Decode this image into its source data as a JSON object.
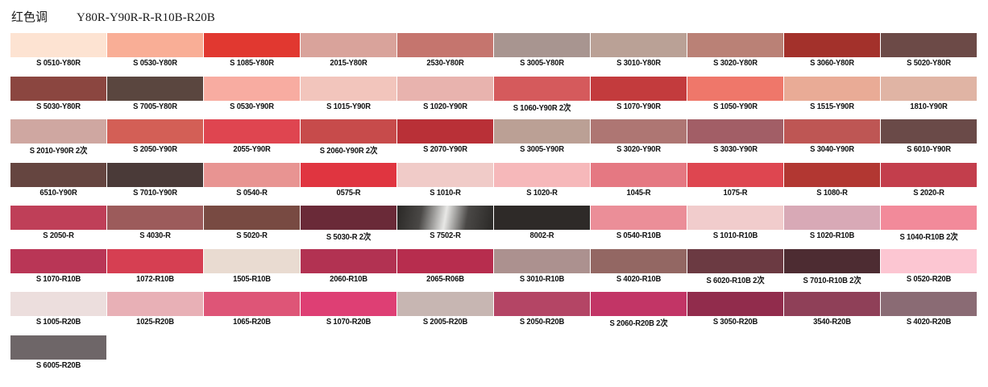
{
  "header": {
    "title": "红色调",
    "series": "Y80R-Y90R-R-R10B-R20B"
  },
  "swatches": [
    {
      "code": "S 0510-Y80R",
      "color": "#fde3d2"
    },
    {
      "code": "S 0530-Y80R",
      "color": "#f9ae96"
    },
    {
      "code": "S 1085-Y80R",
      "color": "#e13830"
    },
    {
      "code": "2015-Y80R",
      "color": "#d9a39b"
    },
    {
      "code": "2530-Y80R",
      "color": "#c5756e"
    },
    {
      "code": "S 3005-Y80R",
      "color": "#a89590"
    },
    {
      "code": "S 3010-Y80R",
      "color": "#baa196"
    },
    {
      "code": "S 3020-Y80R",
      "color": "#ba8176"
    },
    {
      "code": "S 3060-Y80R",
      "color": "#a3312b"
    },
    {
      "code": "S 5020-Y80R",
      "color": "#6c4a47"
    },
    {
      "code": "S 5030-Y80R",
      "color": "#8b4640"
    },
    {
      "code": "S 7005-Y80R",
      "color": "#5a463f"
    },
    {
      "code": "S 0530-Y90R",
      "color": "#f8aca1"
    },
    {
      "code": "S 1015-Y90R",
      "color": "#f2c5bc"
    },
    {
      "code": "S 1020-Y90R",
      "color": "#e8b3ae"
    },
    {
      "code": "S 1060-Y90R 2次",
      "color": "#d55a5c"
    },
    {
      "code": "S 1070-Y90R",
      "color": "#c33b3d"
    },
    {
      "code": "S 1050-Y90R",
      "color": "#ef776a"
    },
    {
      "code": "S 1515-Y90R",
      "color": "#e9ab96"
    },
    {
      "code": "1810-Y90R",
      "color": "#e0b4a4"
    },
    {
      "code": "S 2010-Y90R 2次",
      "color": "#cfa7a1"
    },
    {
      "code": "S 2050-Y90R",
      "color": "#d35f56"
    },
    {
      "code": "2055-Y90R",
      "color": "#df4550"
    },
    {
      "code": "S 2060-Y90R 2次",
      "color": "#c74b4b"
    },
    {
      "code": "S 2070-Y90R",
      "color": "#b93037"
    },
    {
      "code": "S 3005-Y90R",
      "color": "#bba095"
    },
    {
      "code": "S 3020-Y90R",
      "color": "#ae7673"
    },
    {
      "code": "S 3030-Y90R",
      "color": "#a25e66"
    },
    {
      "code": "S 3040-Y90R",
      "color": "#be5654"
    },
    {
      "code": "S 6010-Y90R",
      "color": "#6a4a48"
    },
    {
      "code": "6510-Y90R",
      "color": "#654540"
    },
    {
      "code": "S 7010-Y90R",
      "color": "#4a3a38"
    },
    {
      "code": "S 0540-R",
      "color": "#e89492"
    },
    {
      "code": "0575-R",
      "color": "#e03540"
    },
    {
      "code": "S 1010-R",
      "color": "#f0cbc8"
    },
    {
      "code": "S 1020-R",
      "color": "#f6b8ba"
    },
    {
      "code": "1045-R",
      "color": "#e57882"
    },
    {
      "code": "1075-R",
      "color": "#de4650"
    },
    {
      "code": "S 1080-R",
      "color": "#b23732"
    },
    {
      "code": "S 2020-R",
      "color": "#c33e4c"
    },
    {
      "code": "S 2050-R",
      "color": "#bf3f58"
    },
    {
      "code": "S 4030-R",
      "color": "#9c5b5b"
    },
    {
      "code": "S 5020-R",
      "color": "#784a42"
    },
    {
      "code": "S 5030-R 2次",
      "color": "#6a2a38"
    },
    {
      "code": "S 7502-R",
      "color": "#3a3836"
    },
    {
      "code": "8002-R",
      "color": "#2e2a28"
    },
    {
      "code": "S 0540-R10B",
      "color": "#eb8e98"
    },
    {
      "code": "S 1010-R10B",
      "color": "#f1cccc"
    },
    {
      "code": "S 1020-R10B",
      "color": "#d8a9b6"
    },
    {
      "code": "S 1040-R10B 2次",
      "color": "#f28a9a"
    },
    {
      "code": "S 1070-R10B",
      "color": "#b93656"
    },
    {
      "code": "1072-R10B",
      "color": "#d63f52"
    },
    {
      "code": "1505-R10B",
      "color": "#e9dbd1"
    },
    {
      "code": "2060-R10B",
      "color": "#b23252"
    },
    {
      "code": "2065-R06B",
      "color": "#b72d4e"
    },
    {
      "code": "S 3010-R10B",
      "color": "#ac918f"
    },
    {
      "code": "S 4020-R10B",
      "color": "#936763"
    },
    {
      "code": "S 6020-R10B 2次",
      "color": "#6b3a42"
    },
    {
      "code": "S 7010-R10B 2次",
      "color": "#4d2c32"
    },
    {
      "code": "S 0520-R20B",
      "color": "#fcc6d2"
    },
    {
      "code": "S 1005-R20B",
      "color": "#ecdedd"
    },
    {
      "code": "1025-R20B",
      "color": "#e8b0b6"
    },
    {
      "code": "1065-R20B",
      "color": "#de5577"
    },
    {
      "code": "S 1070-R20B",
      "color": "#de3f74"
    },
    {
      "code": "S 2005-R20B",
      "color": "#c7b6b2"
    },
    {
      "code": "S 2050-R20B",
      "color": "#b44565"
    },
    {
      "code": "S 2060-R20B 2次",
      "color": "#c23566"
    },
    {
      "code": "S 3050-R20B",
      "color": "#912c4c"
    },
    {
      "code": "3540-R20B",
      "color": "#8f4058"
    },
    {
      "code": "S 4020-R20B",
      "color": "#8a6b74"
    },
    {
      "code": "S 6005-R20B",
      "color": "#6e6668"
    }
  ]
}
